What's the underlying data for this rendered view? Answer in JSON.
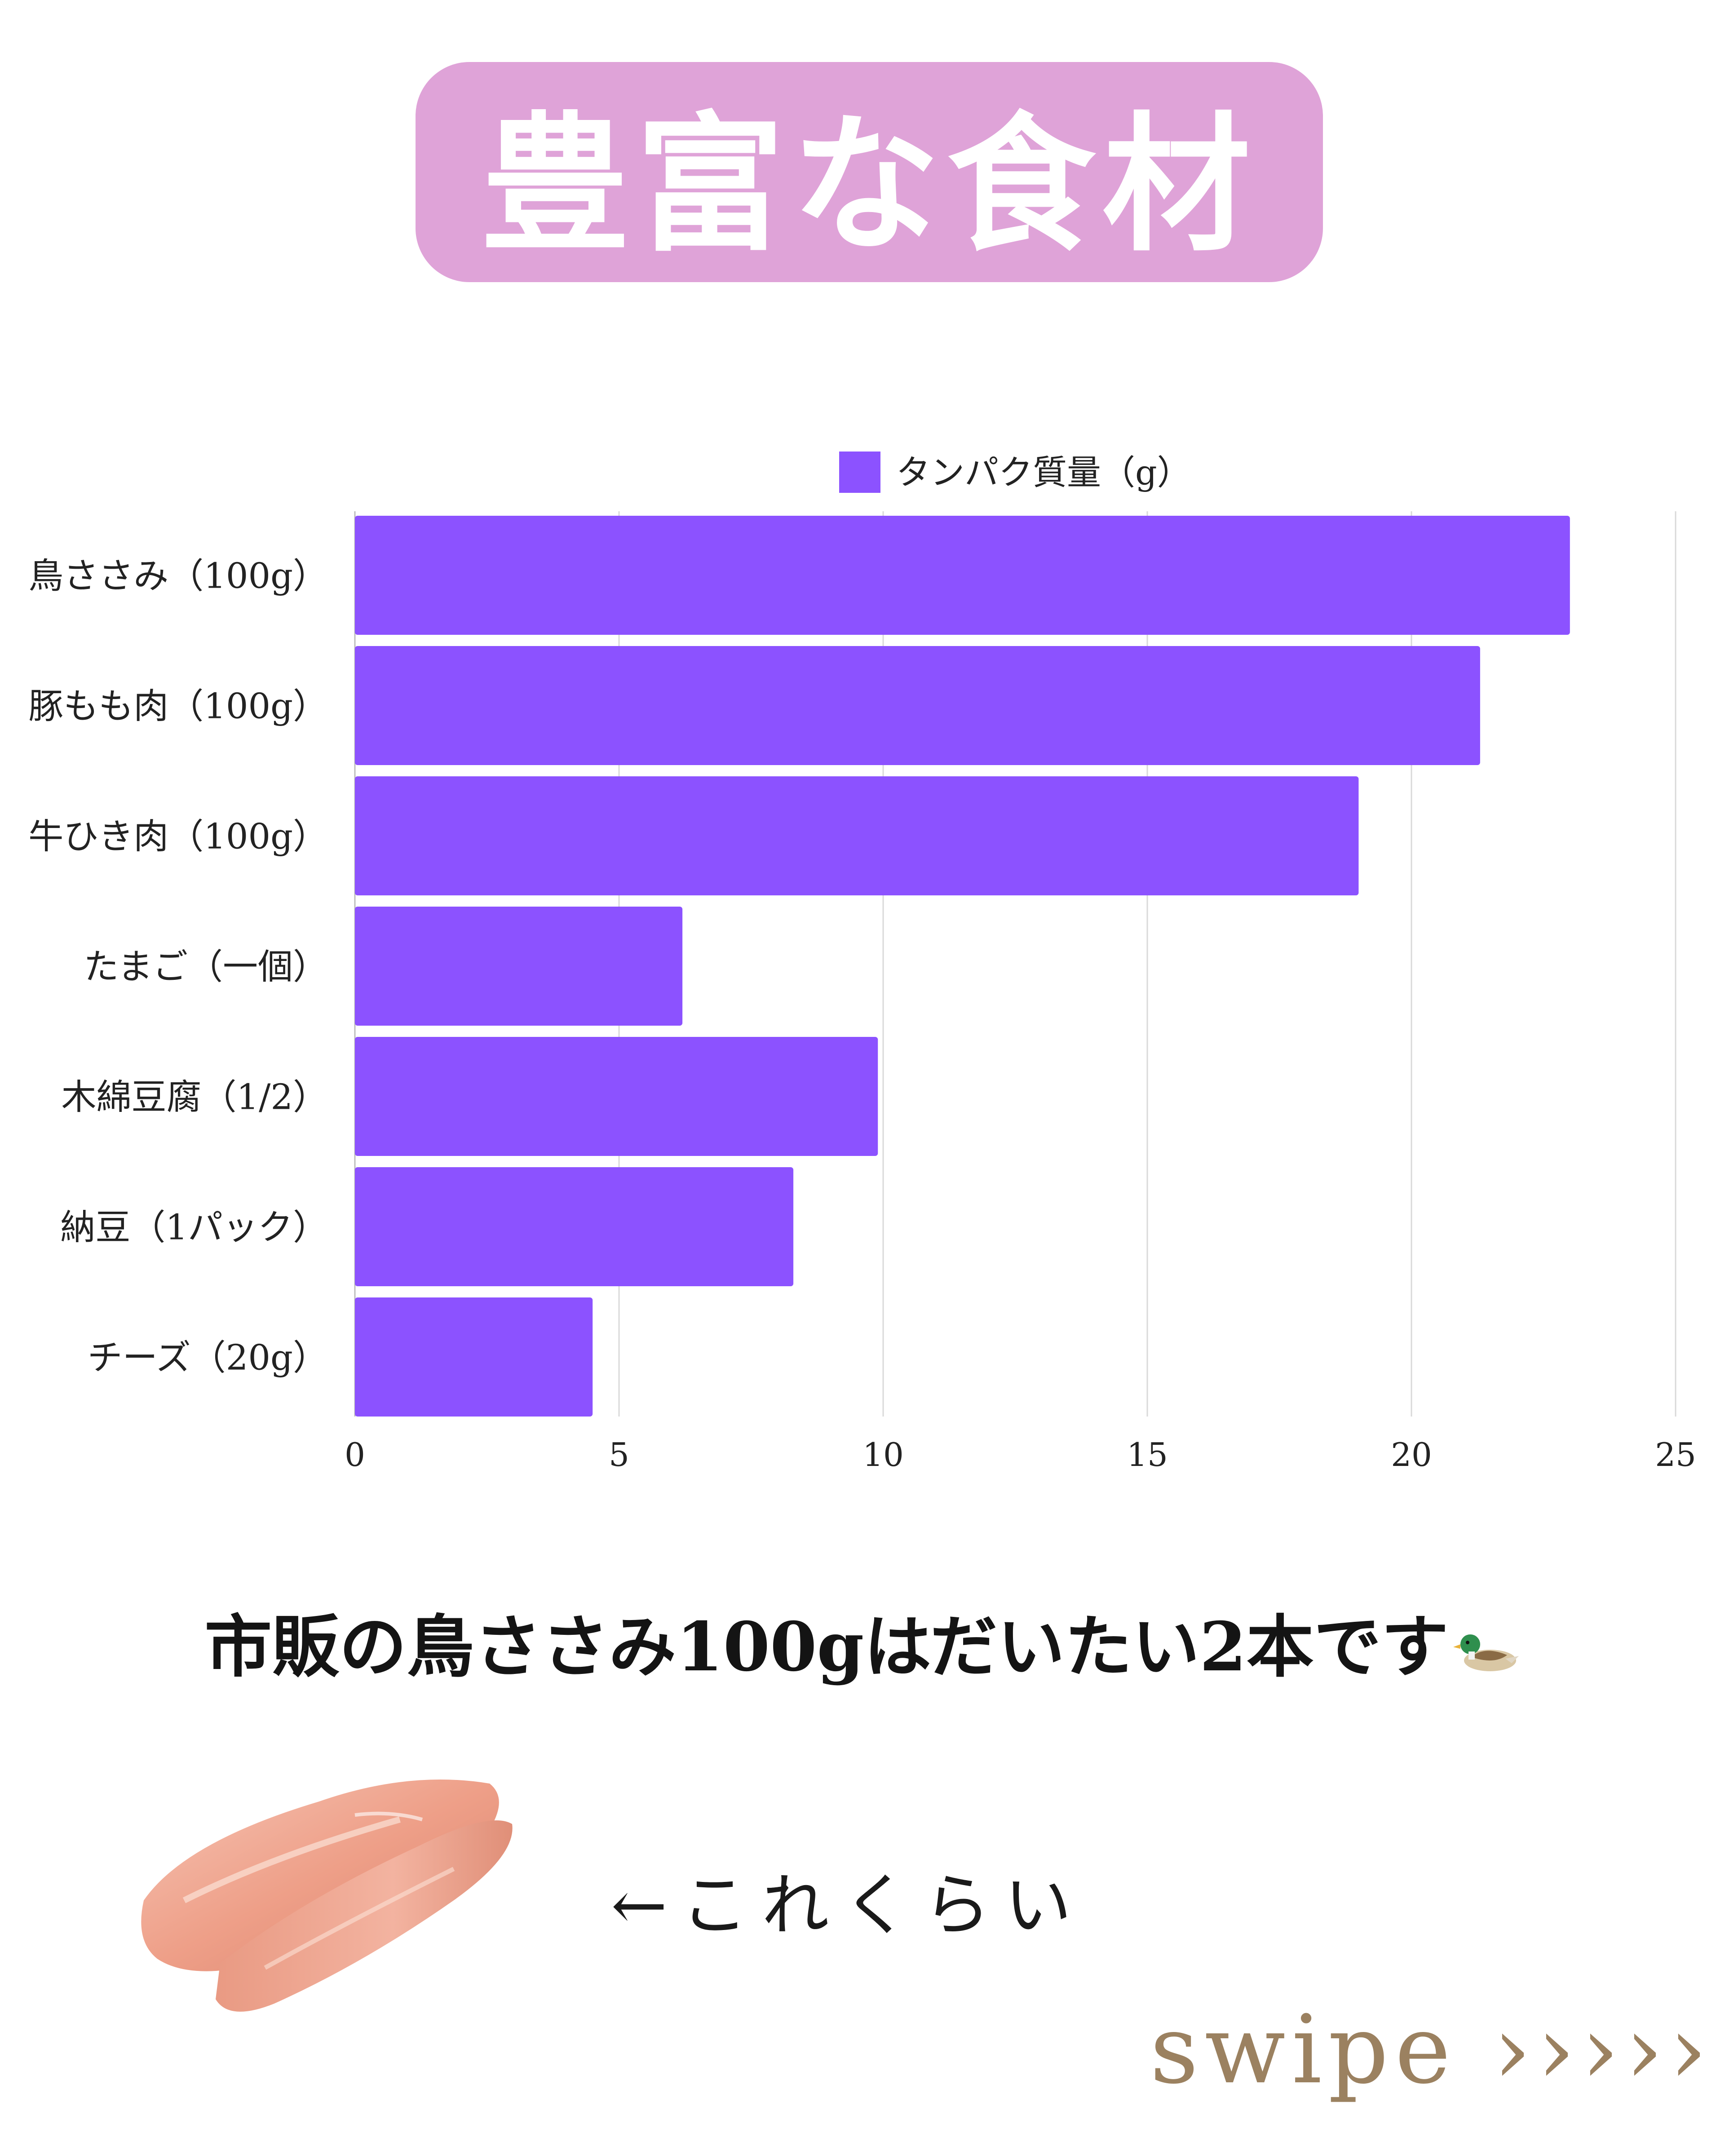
{
  "header": {
    "title": "豊富な食材"
  },
  "chart_data": {
    "type": "bar",
    "orientation": "horizontal",
    "categories": [
      "鳥ささみ（100g）",
      "豚もも肉（100g）",
      "牛ひき肉（100g）",
      "たまご（一個）",
      "木綿豆腐（1/2）",
      "納豆（1パック）",
      "チーズ（20g）"
    ],
    "series": [
      {
        "name": "タンパク質量（g）",
        "values": [
          23.0,
          21.3,
          19.0,
          6.2,
          9.9,
          8.3,
          4.5
        ],
        "color": "#8c52ff"
      }
    ],
    "xlim": [
      0,
      25
    ],
    "xticks": [
      "0",
      "5",
      "10",
      "15",
      "20",
      "25"
    ],
    "grid": "vertical",
    "legend": "top-center"
  },
  "caption": {
    "text": "市販の鳥ささみ100gはだいたい2本です",
    "icon": "duck-icon"
  },
  "photo": {
    "icon": "chicken-breast-image"
  },
  "size_note": "←これくらい",
  "footer": {
    "swipe_label": "swipe ›››››",
    "color": "#9b8160"
  }
}
